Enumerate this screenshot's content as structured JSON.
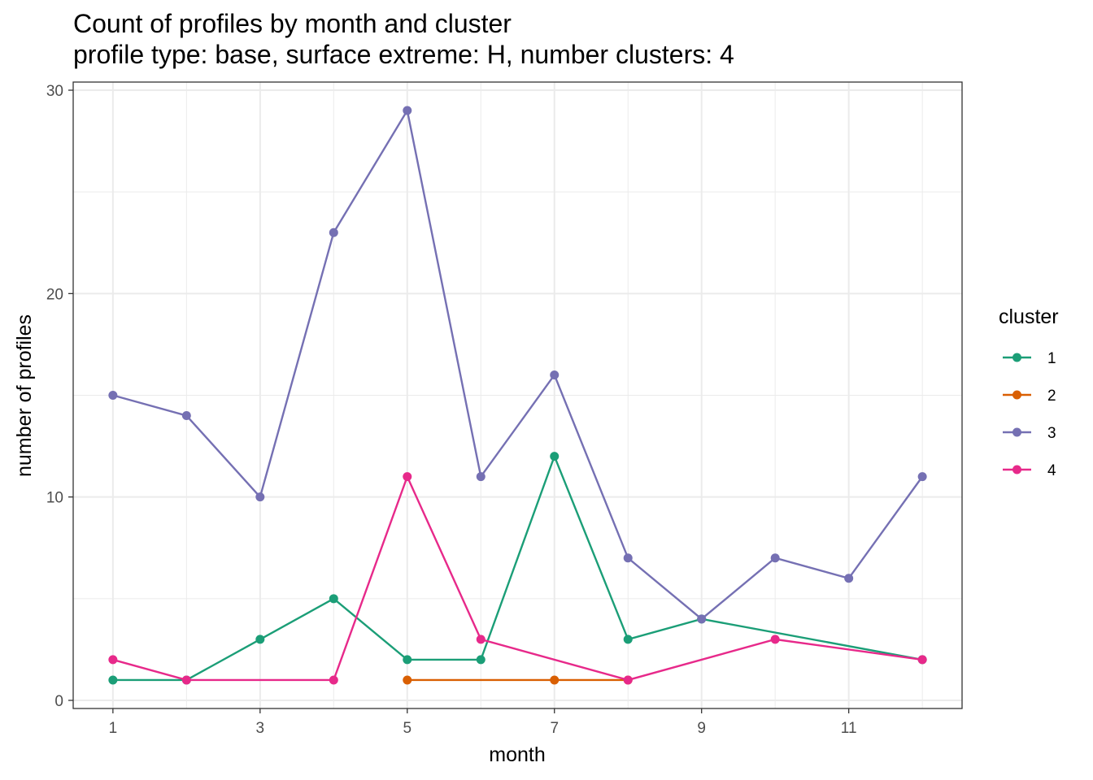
{
  "chart_data": {
    "type": "line",
    "title": "Count of profiles by month and cluster",
    "subtitle": "profile type: base, surface extreme: H, number clusters: 4",
    "xlabel": "month",
    "ylabel": "number of profiles",
    "xlim": [
      0.46,
      12.54
    ],
    "ylim": [
      -0.4,
      30.4
    ],
    "x_ticks": [
      1,
      3,
      5,
      7,
      9,
      11
    ],
    "y_ticks": [
      0,
      10,
      20,
      30
    ],
    "grid": true,
    "legend": {
      "title": "cluster",
      "placement": "right"
    },
    "series": [
      {
        "name": "1",
        "color": "#1B9E77",
        "points": [
          [
            1,
            1
          ],
          [
            2,
            1
          ],
          [
            3,
            3
          ],
          [
            4,
            5
          ],
          [
            5,
            2
          ],
          [
            6,
            2
          ],
          [
            7,
            12
          ],
          [
            8,
            3
          ],
          [
            9,
            4
          ],
          [
            12,
            2
          ]
        ]
      },
      {
        "name": "2",
        "color": "#D95F02",
        "points": [
          [
            5,
            1
          ],
          [
            7,
            1
          ],
          [
            8,
            1
          ]
        ]
      },
      {
        "name": "3",
        "color": "#7570B3",
        "points": [
          [
            1,
            15
          ],
          [
            2,
            14
          ],
          [
            3,
            10
          ],
          [
            4,
            23
          ],
          [
            5,
            29
          ],
          [
            6,
            11
          ],
          [
            7,
            16
          ],
          [
            8,
            7
          ],
          [
            9,
            4
          ],
          [
            10,
            7
          ],
          [
            11,
            6
          ],
          [
            12,
            11
          ]
        ]
      },
      {
        "name": "4",
        "color": "#E7298A",
        "points": [
          [
            1,
            2
          ],
          [
            2,
            1
          ],
          [
            4,
            1
          ],
          [
            5,
            11
          ],
          [
            6,
            3
          ],
          [
            8,
            1
          ],
          [
            10,
            3
          ],
          [
            12,
            2
          ]
        ]
      }
    ]
  }
}
